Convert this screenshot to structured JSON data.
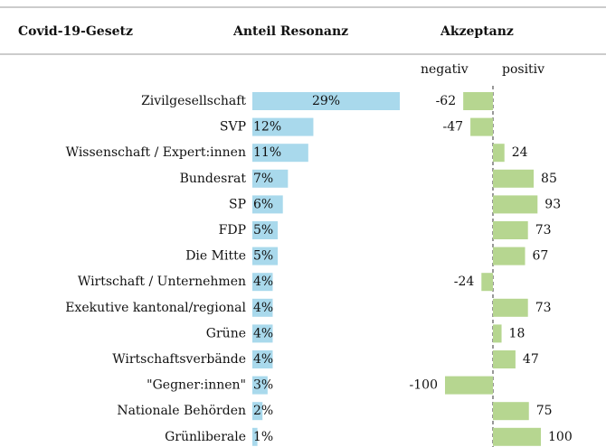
{
  "chart_data": {
    "type": "dual-bar",
    "headers": [
      "Covid-19-Gesetz",
      "Anteil Resonanz",
      "Akzeptanz"
    ],
    "subheaders": [
      "negativ",
      "positiv"
    ],
    "categories": [
      "Zivilgesellschaft",
      "SVP",
      "Wissenschaft / Expert:innen",
      "Bundesrat",
      "SP",
      "FDP",
      "Die Mitte",
      "Wirtschaft / Unternehmen",
      "Exekutive kantonal/regional",
      "Grüne",
      "Wirtschaftsverbände",
      "\"Gegner:innen\"",
      "Nationale Behörden",
      "Grünliberale"
    ],
    "series": [
      {
        "name": "Anteil Resonanz",
        "color": "#a9d9ec",
        "values": [
          29,
          12,
          11,
          7,
          6,
          5,
          5,
          4,
          4,
          4,
          4,
          3,
          2,
          1
        ],
        "value_labels": [
          "29%",
          "12%",
          "11%",
          "7%",
          "6%",
          "5%",
          "5%",
          "4%",
          "4%",
          "4%",
          "4%",
          "3%",
          "2%",
          "1%"
        ]
      },
      {
        "name": "Akzeptanz",
        "color": "#b6d690",
        "values": [
          -62,
          -47,
          24,
          85,
          93,
          73,
          67,
          -24,
          73,
          18,
          47,
          -100,
          75,
          100
        ]
      }
    ]
  }
}
